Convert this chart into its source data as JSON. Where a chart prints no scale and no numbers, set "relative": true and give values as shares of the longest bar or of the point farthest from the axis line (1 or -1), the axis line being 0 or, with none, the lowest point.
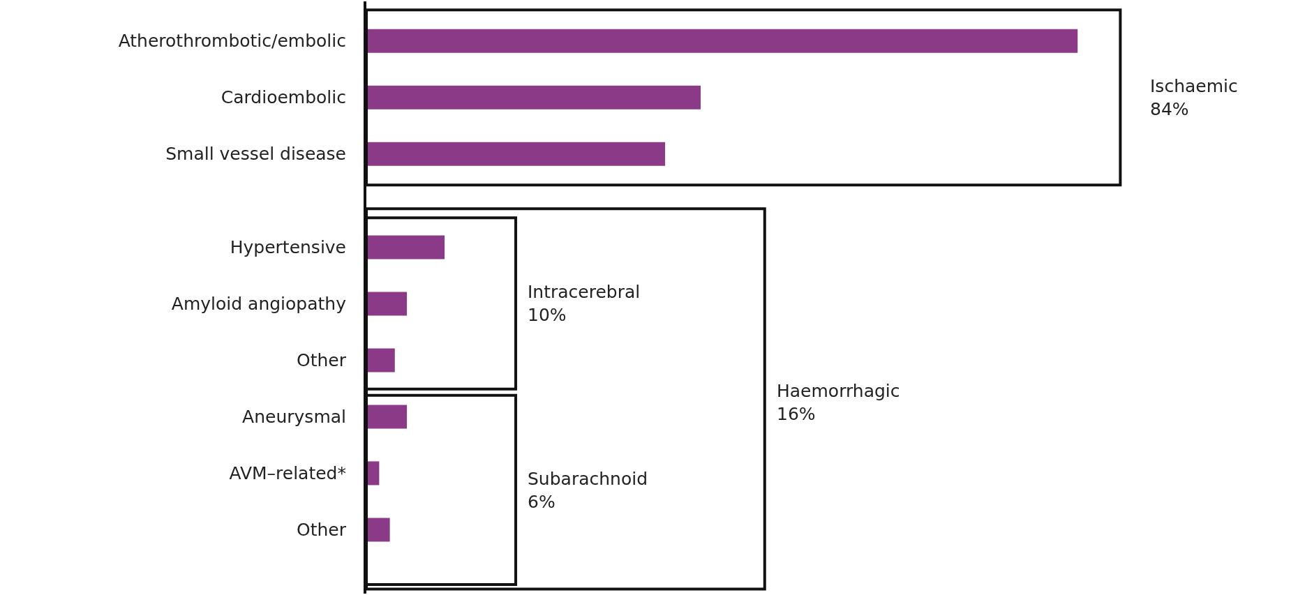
{
  "chart_data": {
    "type": "bar",
    "orientation": "horizontal",
    "relative": true,
    "color": "#8b3a87",
    "categories": [
      "Atherothrombotic/embolic",
      "Cardioembolic",
      "Small vessel disease",
      "Hypertensive",
      "Amyloid angiopathy",
      "Other",
      "Aneurysmal",
      "AVM–related*",
      "Other"
    ],
    "values": [
      1,
      0.47,
      0.42,
      0.11,
      0.057,
      0.04,
      0.057,
      0.018,
      0.033
    ],
    "annotations": [
      "Ischaemic\n84%",
      "Intracerebral\n10%",
      "Haemorrhagic\n16%",
      "Subarachnoid\n6%"
    ]
  }
}
